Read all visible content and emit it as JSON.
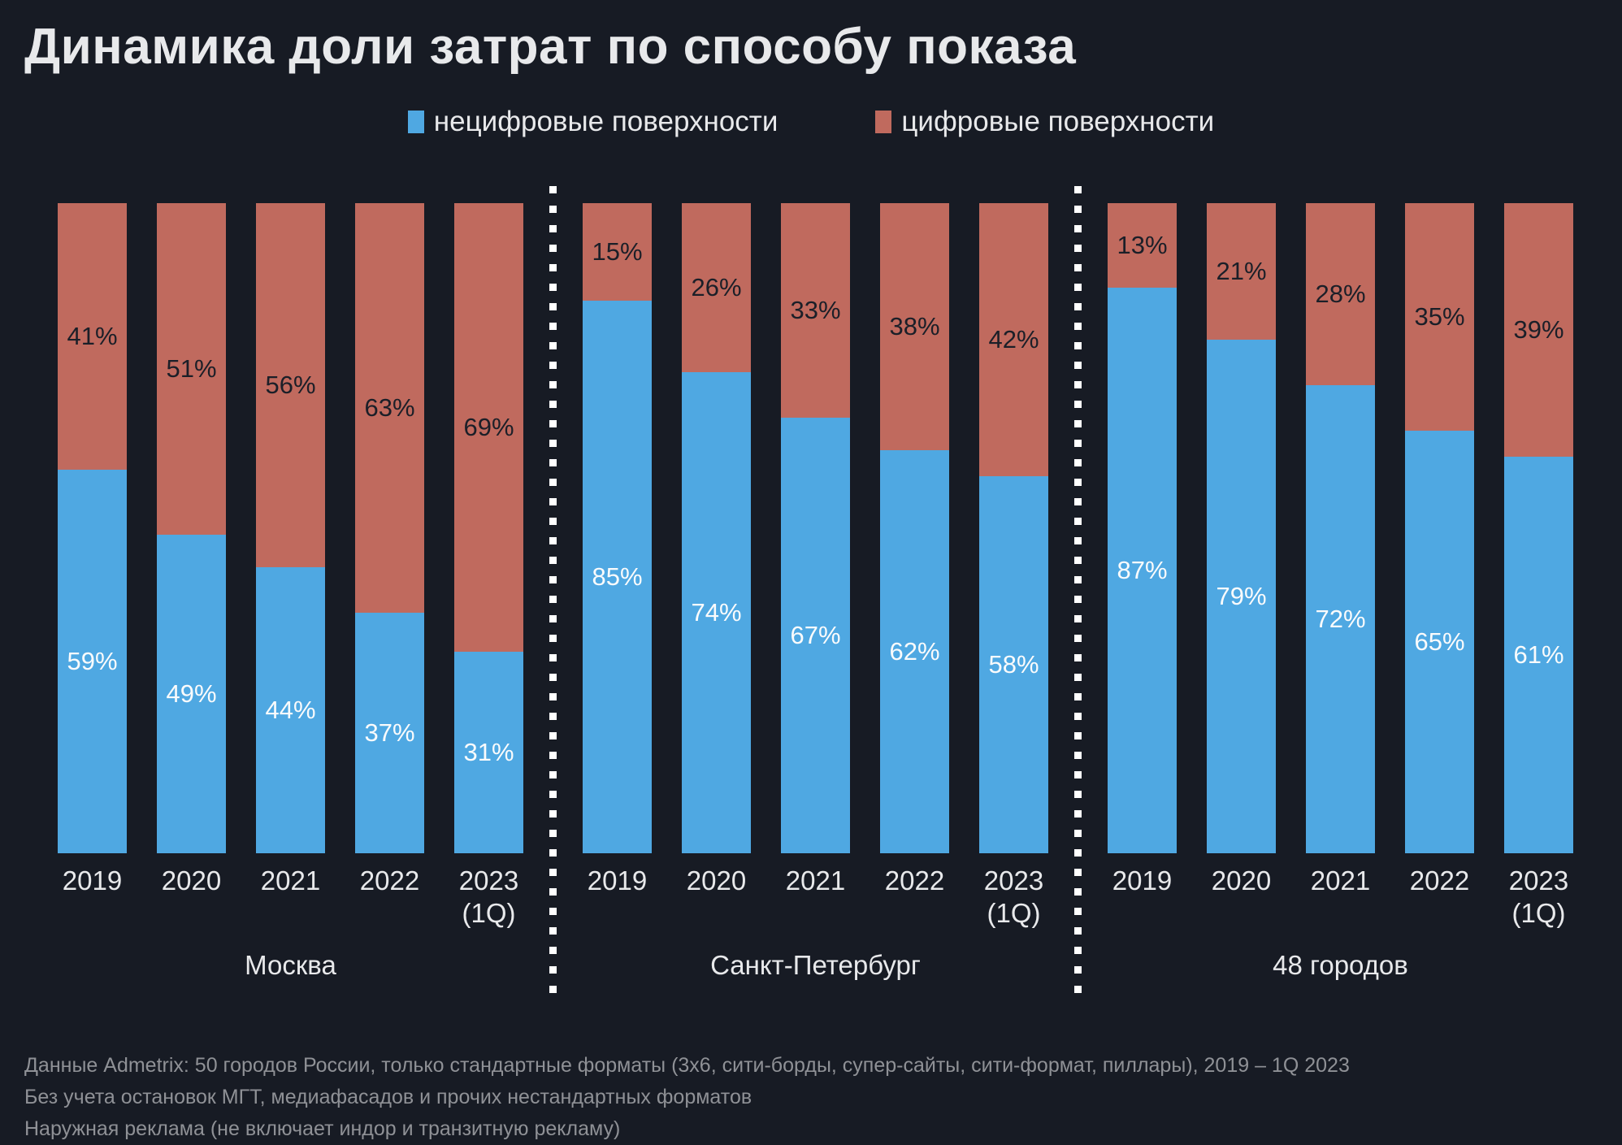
{
  "title": "Динамика доли затрат по способу показа",
  "legend": {
    "non_digital": "нецифровые поверхности",
    "digital": "цифровые поверхности"
  },
  "colors": {
    "background": "#171B24",
    "non_digital": "#4FA8E2",
    "digital": "#C06A5E",
    "label_on_digital": "#1B1F28",
    "label_on_non_digital": "#FAFBFC",
    "text": "#E8E9EB",
    "footer_text": "#8F9196",
    "divider": "#FFFFFF"
  },
  "chart_data": {
    "type": "bar",
    "variant": "stacked-100-percent-column",
    "unit": "%",
    "title": "Динамика доли затрат по способу показа",
    "categories": [
      "2019",
      "2020",
      "2021",
      "2022",
      "2023 (1Q)"
    ],
    "series_names": [
      "нецифровые поверхности",
      "цифровые поверхности"
    ],
    "legend_position": "top",
    "value_labels": "inside-center",
    "ylim": [
      0,
      100
    ],
    "axes": "hidden",
    "groups": [
      {
        "label": "Москва",
        "series": [
          {
            "name": "нецифровые поверхности",
            "values": [
              59,
              49,
              44,
              37,
              31
            ]
          },
          {
            "name": "цифровые поверхности",
            "values": [
              41,
              51,
              56,
              63,
              69
            ]
          }
        ]
      },
      {
        "label": "Санкт-Петербург",
        "series": [
          {
            "name": "нецифровые поверхности",
            "values": [
              85,
              74,
              67,
              62,
              58
            ]
          },
          {
            "name": "цифровые поверхности",
            "values": [
              15,
              26,
              33,
              38,
              42
            ]
          }
        ]
      },
      {
        "label": "48 городов",
        "series": [
          {
            "name": "нецифровые поверхности",
            "values": [
              87,
              79,
              72,
              65,
              61
            ]
          },
          {
            "name": "цифровые поверхности",
            "values": [
              13,
              21,
              28,
              35,
              39
            ]
          }
        ]
      }
    ]
  },
  "footer": {
    "lines": [
      "Данные Admetrix: 50 городов России, только стандартные форматы (3х6, сити-борды, супер-сайты, сити-формат, пиллары), 2019 – 1Q 2023",
      "Без учета остановок МГТ, медиафасадов и прочих нестандартных форматов",
      "Наружная реклама (не включает индор и транзитную рекламу)"
    ]
  }
}
